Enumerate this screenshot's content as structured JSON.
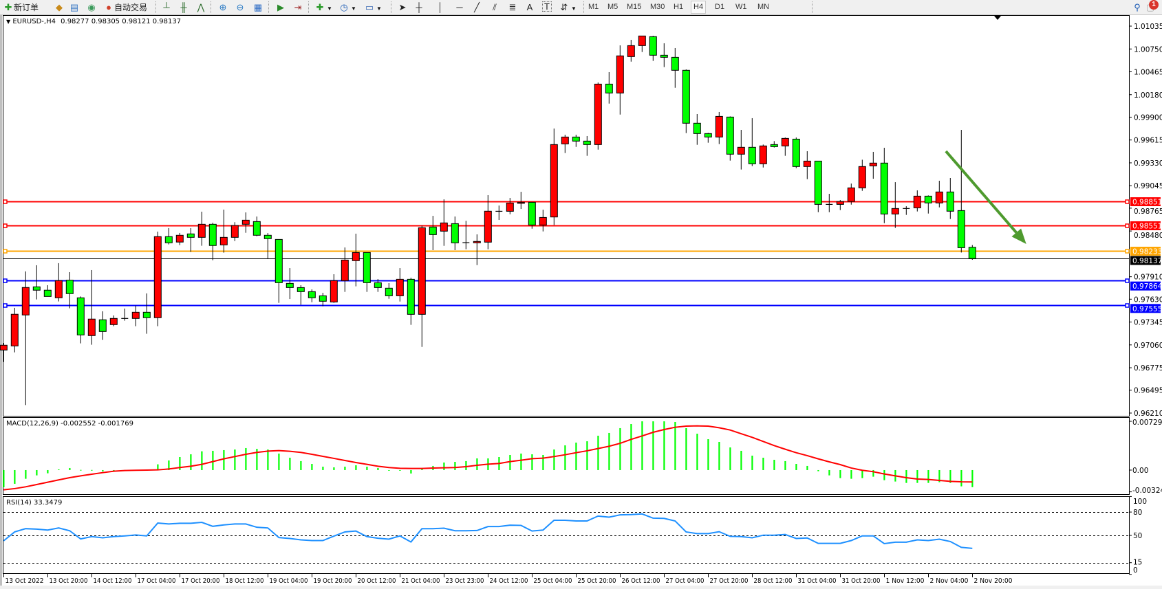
{
  "toolbar": {
    "new_order_label": "新订单",
    "auto_trading_label": "自动交易",
    "text_tool_label": "A",
    "text_label_tool": "T",
    "timeframes": [
      "M1",
      "M5",
      "M15",
      "M30",
      "H1",
      "H4",
      "D1",
      "W1",
      "MN"
    ],
    "active_timeframe": "H4",
    "notification_count": "1"
  },
  "chart": {
    "symbol": "EURUSD-,H4",
    "ohlc_header": "0.98277 0.98305 0.98121 0.98137",
    "bull_color": "#ff0000",
    "bear_color": "#00ff00",
    "price_axis": {
      "ylim": [
        0.9621,
        1.01035
      ],
      "labels": [
        "1.01035",
        "1.00750",
        "1.00465",
        "1.00180",
        "0.99900",
        "0.99615",
        "0.99330",
        "0.99045",
        "0.98765",
        "0.98480",
        "0.97910",
        "0.97630",
        "0.97345",
        "0.97060",
        "0.96775",
        "0.96495",
        "0.96210"
      ]
    },
    "candles_ohlc": [
      [
        0.96996,
        0.97084,
        0.96847,
        0.97056
      ],
      [
        0.97047,
        0.97522,
        0.96967,
        0.97442
      ],
      [
        0.97433,
        0.97976,
        0.9631,
        0.97776
      ],
      [
        0.97784,
        0.98053,
        0.97627,
        0.97742
      ],
      [
        0.97742,
        0.97804,
        0.97664,
        0.97664
      ],
      [
        0.97647,
        0.98079,
        0.97602,
        0.97862
      ],
      [
        0.97867,
        0.97967,
        0.97516,
        0.97699
      ],
      [
        0.97647,
        0.97664,
        0.97079,
        0.97184
      ],
      [
        0.97176,
        0.97993,
        0.97062,
        0.97382
      ],
      [
        0.97373,
        0.97479,
        0.97122,
        0.97227
      ],
      [
        0.97313,
        0.97427,
        0.97293,
        0.9739
      ],
      [
        0.9739,
        0.97513,
        0.97362,
        0.9739
      ],
      [
        0.9739,
        0.9755,
        0.97293,
        0.97467
      ],
      [
        0.97467,
        0.97702,
        0.97199,
        0.97399
      ],
      [
        0.97399,
        0.98473,
        0.97293,
        0.9841
      ],
      [
        0.9841,
        0.98516,
        0.98313,
        0.98333
      ],
      [
        0.98342,
        0.98456,
        0.98304,
        0.98427
      ],
      [
        0.98444,
        0.98516,
        0.98219,
        0.98401
      ],
      [
        0.98401,
        0.98721,
        0.98296,
        0.98564
      ],
      [
        0.98564,
        0.98584,
        0.98116,
        0.98299
      ],
      [
        0.98307,
        0.98747,
        0.9821,
        0.98401
      ],
      [
        0.98401,
        0.9859,
        0.98355,
        0.9855
      ],
      [
        0.98564,
        0.98712,
        0.98458,
        0.98615
      ],
      [
        0.98598,
        0.98661,
        0.98415,
        0.98427
      ],
      [
        0.98427,
        0.98455,
        0.98138,
        0.98384
      ],
      [
        0.98375,
        0.98375,
        0.97584,
        0.97835
      ],
      [
        0.97827,
        0.98018,
        0.97632,
        0.97775
      ],
      [
        0.97775,
        0.97804,
        0.97561,
        0.97724
      ],
      [
        0.97724,
        0.97752,
        0.97592,
        0.97647
      ],
      [
        0.97672,
        0.9771,
        0.97541,
        0.97604
      ],
      [
        0.97595,
        0.97941,
        0.97584,
        0.97861
      ],
      [
        0.97861,
        0.98275,
        0.97721,
        0.98118
      ],
      [
        0.9811,
        0.98447,
        0.9779,
        0.98212
      ],
      [
        0.98212,
        0.98212,
        0.97721,
        0.97835
      ],
      [
        0.97835,
        0.97881,
        0.97721,
        0.97775
      ],
      [
        0.97767,
        0.9783,
        0.97635,
        0.97672
      ],
      [
        0.97672,
        0.98018,
        0.97601,
        0.97878
      ],
      [
        0.97878,
        0.97898,
        0.9731,
        0.97441
      ],
      [
        0.97441,
        0.98546,
        0.97035,
        0.98521
      ],
      [
        0.9853,
        0.98669,
        0.98241,
        0.98435
      ],
      [
        0.98478,
        0.98875,
        0.98295,
        0.98581
      ],
      [
        0.98572,
        0.98661,
        0.98241,
        0.98332
      ],
      [
        0.98335,
        0.98607,
        0.98253,
        0.98335
      ],
      [
        0.98333,
        0.98438,
        0.98055,
        0.9835
      ],
      [
        0.98341,
        0.98927,
        0.98253,
        0.98727
      ],
      [
        0.98726,
        0.98798,
        0.98618,
        0.98726
      ],
      [
        0.98726,
        0.98892,
        0.98689,
        0.98829
      ],
      [
        0.98826,
        0.98969,
        0.98755,
        0.98838
      ],
      [
        0.98838,
        0.98838,
        0.98509,
        0.98555
      ],
      [
        0.98555,
        0.98746,
        0.98475,
        0.98649
      ],
      [
        0.98655,
        0.99758,
        0.98555,
        0.99558
      ],
      [
        0.99566,
        0.99681,
        0.99452,
        0.99652
      ],
      [
        0.99652,
        0.99681,
        0.99529,
        0.99601
      ],
      [
        0.99601,
        0.99664,
        0.99418,
        0.99558
      ],
      [
        0.99558,
        1.00332,
        0.99495,
        1.00312
      ],
      [
        1.00312,
        1.00461,
        1.00069,
        1.00201
      ],
      [
        1.00201,
        1.00795,
        0.99932,
        1.00664
      ],
      [
        1.00655,
        1.00864,
        1.00592,
        1.00792
      ],
      [
        1.00792,
        1.00912,
        1.00712,
        1.00912
      ],
      [
        1.00904,
        1.00915,
        1.00601,
        1.00672
      ],
      [
        1.00672,
        1.00821,
        1.00524,
        1.00646
      ],
      [
        1.00646,
        1.00761,
        1.00266,
        1.00484
      ],
      [
        1.00484,
        1.00495,
        0.99701,
        0.99824
      ],
      [
        0.99824,
        0.99938,
        0.99555,
        0.99695
      ],
      [
        0.99695,
        0.99704,
        0.99581,
        0.99652
      ],
      [
        0.99652,
        0.99964,
        0.99564,
        0.99909
      ],
      [
        0.99901,
        0.99909,
        0.99358,
        0.99438
      ],
      [
        0.99438,
        0.99741,
        0.99247,
        0.99524
      ],
      [
        0.99524,
        0.99887,
        0.99289,
        0.99318
      ],
      [
        0.99318,
        0.99558,
        0.99272,
        0.99541
      ],
      [
        0.99558,
        0.99601,
        0.99521,
        0.99532
      ],
      [
        0.99541,
        0.99646,
        0.99418,
        0.99635
      ],
      [
        0.99626,
        0.99646,
        0.99264,
        0.99284
      ],
      [
        0.99284,
        0.99475,
        0.99127,
        0.99352
      ],
      [
        0.99352,
        0.99352,
        0.98715,
        0.98812
      ],
      [
        0.98812,
        0.98944,
        0.98715,
        0.98812
      ],
      [
        0.98812,
        0.98866,
        0.98741,
        0.98849
      ],
      [
        0.98849,
        0.99072,
        0.98809,
        0.99018
      ],
      [
        0.99018,
        0.99369,
        0.98981,
        0.99284
      ],
      [
        0.99292,
        0.99467,
        0.99132,
        0.99327
      ],
      [
        0.99327,
        0.99518,
        0.98578,
        0.98692
      ],
      [
        0.98692,
        0.99089,
        0.98518,
        0.98761
      ],
      [
        0.98761,
        0.98789,
        0.98681,
        0.98761
      ],
      [
        0.98769,
        0.98987,
        0.98724,
        0.98915
      ],
      [
        0.98915,
        0.98924,
        0.98698,
        0.9883
      ],
      [
        0.9883,
        0.99107,
        0.98775,
        0.98967
      ],
      [
        0.98967,
        0.99141,
        0.9863,
        0.98727
      ],
      [
        0.98735,
        0.99741,
        0.98212,
        0.98272
      ],
      [
        0.98277,
        0.98305,
        0.98121,
        0.98137
      ]
    ],
    "levels": [
      {
        "price": "0.98851",
        "color": "#ff0000"
      },
      {
        "price": "0.98551",
        "color": "#ff0000"
      },
      {
        "price": "0.98233",
        "color": "#ffa500"
      },
      {
        "price": "0.97864",
        "color": "#0000ff"
      },
      {
        "price": "0.97555",
        "color": "#0000ff"
      }
    ],
    "current_price": "0.98137",
    "arrow": {
      "color": "#4e9a2e",
      "from": {
        "bar": 85.6,
        "price": 0.99475
      },
      "to": {
        "bar": 92.9,
        "price": 0.98318
      }
    },
    "time_labels": [
      "13 Oct 2022",
      "13 Oct 20:00",
      "14 Oct 12:00",
      "17 Oct 04:00",
      "17 Oct 20:00",
      "18 Oct 12:00",
      "19 Oct 04:00",
      "19 Oct 20:00",
      "20 Oct 12:00",
      "21 Oct 04:00",
      "23 Oct 23:00",
      "24 Oct 12:00",
      "25 Oct 04:00",
      "25 Oct 20:00",
      "26 Oct 12:00",
      "27 Oct 04:00",
      "27 Oct 20:00",
      "28 Oct 12:00",
      "31 Oct 04:00",
      "31 Oct 20:00",
      "1 Nov 12:00",
      "2 Nov 04:00",
      "2 Nov 20:00"
    ]
  },
  "macd": {
    "title": "MACD(12,26,9) -0.002552 -0.001769",
    "ylim": [
      -0.003249,
      0.007293
    ],
    "axis_labels": [
      "0.007293",
      "0.00",
      "-0.003249"
    ],
    "hist_color": "#00ff00",
    "signal_color": "#ff0000",
    "histogram": [
      -0.00257,
      -0.00205,
      -0.0013,
      -0.00079,
      -0.00048,
      0.0001,
      0.00031,
      3e-05,
      2e-05,
      -0.0002,
      -0.0002,
      1e-05,
      1e-05,
      1e-05,
      0.00086,
      0.00144,
      0.00195,
      0.00236,
      0.00281,
      0.00288,
      0.00298,
      0.00308,
      0.00329,
      0.00318,
      0.00308,
      0.00247,
      0.00185,
      0.00134,
      0.00092,
      0.00051,
      0.00041,
      0.00051,
      0.00072,
      0.00051,
      0.00031,
      -0.0001,
      -0.0001,
      -0.00051,
      0.00021,
      0.00062,
      0.00113,
      0.00123,
      0.00134,
      0.00175,
      0.00175,
      0.00195,
      0.00226,
      0.00247,
      0.00236,
      0.00226,
      0.00308,
      0.0037,
      0.00411,
      0.00431,
      0.00514,
      0.00555,
      0.00627,
      0.00688,
      0.00729,
      0.00729,
      0.00729,
      0.00719,
      0.00627,
      0.00544,
      0.00462,
      0.00421,
      0.00339,
      0.00288,
      0.00216,
      0.00185,
      0.00154,
      0.00134,
      0.00092,
      0.00062,
      -0.00017,
      -0.00079,
      -0.0012,
      -0.0013,
      -0.0012,
      -0.00099,
      -0.00151,
      -0.00171,
      -0.00192,
      -0.00192,
      -0.00192,
      -0.00181,
      -0.00192,
      -0.00243,
      -0.002552
    ],
    "signal": [
      -0.00294,
      -0.00277,
      -0.0025,
      -0.00216,
      -0.00181,
      -0.00147,
      -0.00113,
      -0.00086,
      -0.00062,
      -0.00038,
      -0.00017,
      -7e-05,
      -3e-05,
      0,
      3e-05,
      0.00017,
      0.00038,
      0.00058,
      0.00086,
      0.00127,
      0.00168,
      0.00202,
      0.00236,
      0.00264,
      0.00284,
      0.00291,
      0.00281,
      0.00264,
      0.00236,
      0.00205,
      0.00175,
      0.00144,
      0.00113,
      0.00086,
      0.00058,
      0.00038,
      0.00027,
      0.00024,
      0.00024,
      0.00031,
      0.00034,
      0.00038,
      0.00051,
      0.00072,
      0.00088,
      0.00099,
      0.00127,
      0.00147,
      0.00171,
      0.00178,
      0.00202,
      0.00229,
      0.0026,
      0.00288,
      0.00322,
      0.00356,
      0.004,
      0.00459,
      0.0051,
      0.00565,
      0.00606,
      0.0064,
      0.00657,
      0.00661,
      0.00657,
      0.00633,
      0.00599,
      0.00544,
      0.0049,
      0.00428,
      0.00366,
      0.00312,
      0.0026,
      0.00216,
      0.00168,
      0.00123,
      0.00082,
      0.00031,
      -3e-05,
      -0.00024,
      -0.00058,
      -0.00086,
      -0.00113,
      -0.00134,
      -0.0014,
      -0.00154,
      -0.00168,
      -0.00175,
      -0.001769
    ]
  },
  "rsi": {
    "title": "RSI(14) 33.3479",
    "ylim": [
      0,
      100
    ],
    "levels": [
      80,
      50,
      15
    ],
    "axis_labels": [
      "100",
      "80",
      "50",
      "15",
      "0"
    ],
    "line_color": "#1e90ff",
    "values": [
      43.1,
      54.5,
      58.7,
      58.1,
      56.9,
      59.6,
      56,
      45.5,
      48.5,
      47,
      48.5,
      49.4,
      50.6,
      49.4,
      65.9,
      64.7,
      65.6,
      65.6,
      66.8,
      61.7,
      63.5,
      64.7,
      64.7,
      60.5,
      59.6,
      47.3,
      46.1,
      44.3,
      43.4,
      43.4,
      49.1,
      54.5,
      55.7,
      48.5,
      46.4,
      45.2,
      49.4,
      41.6,
      58.7,
      58.7,
      59.3,
      56,
      56,
      56.3,
      61.4,
      61.4,
      63.2,
      62.9,
      55.7,
      56.9,
      69.5,
      69.5,
      68.6,
      68.6,
      74.9,
      73.4,
      76.4,
      76.7,
      77.6,
      72.2,
      71.9,
      68.6,
      54.5,
      52.4,
      52.4,
      54.8,
      48.8,
      48.5,
      47,
      50.3,
      50.3,
      51.2,
      46.1,
      46.7,
      39.8,
      39.8,
      39.8,
      43.4,
      49.4,
      49.4,
      39.5,
      41.3,
      41.3,
      44.3,
      43.4,
      45.2,
      42.2,
      34.7,
      33.3479
    ]
  }
}
